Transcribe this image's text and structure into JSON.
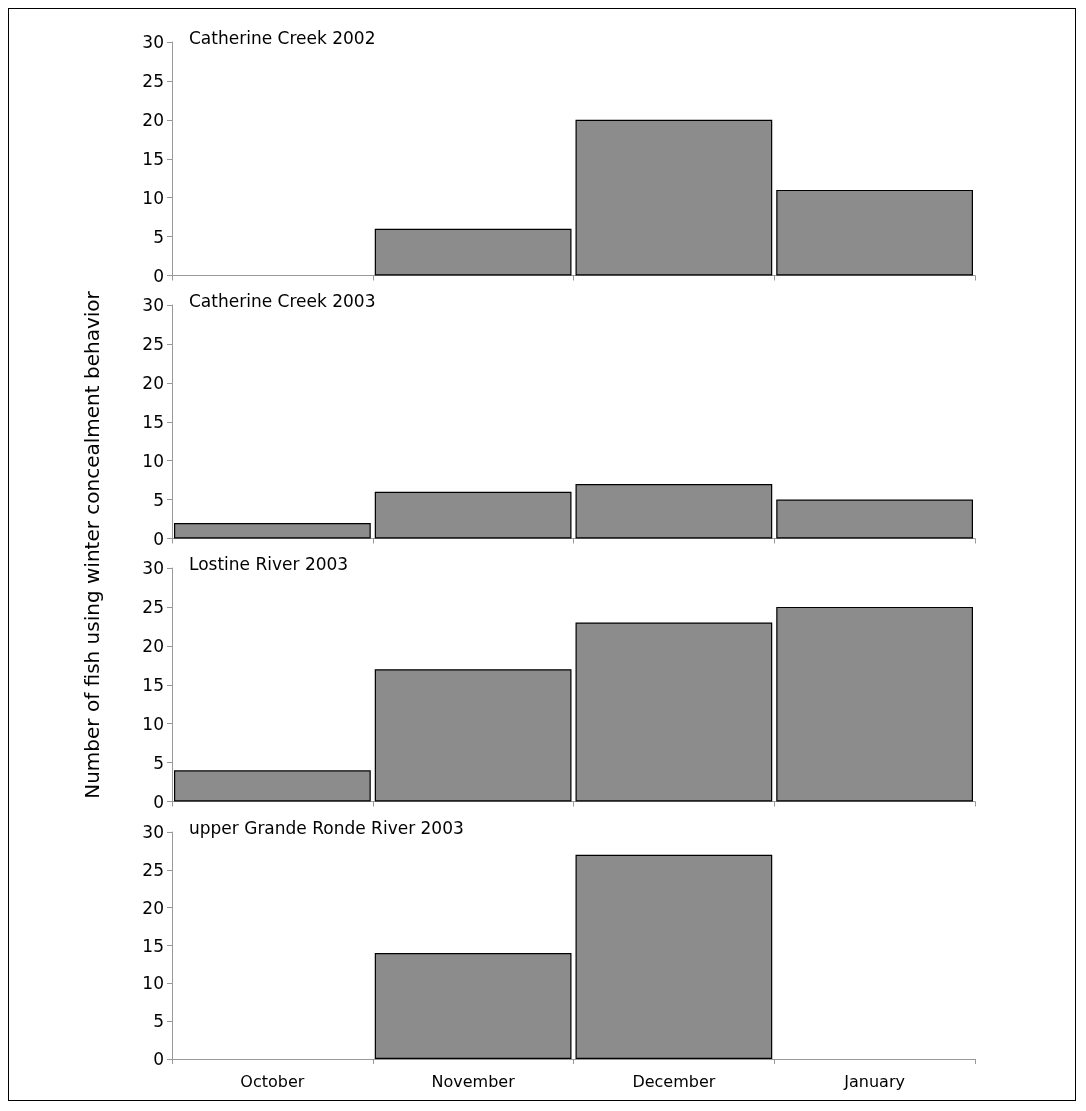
{
  "chart_data": [
    {
      "type": "bar",
      "title": "Catherine Creek 2002",
      "ylabel": "Number of fish using winter concealment behavior",
      "categories": [
        null,
        null,
        null,
        null
      ],
      "values": [
        0,
        6,
        20,
        11
      ],
      "color": "#8c8c8c",
      "ylim": [
        0,
        30
      ],
      "yticks": [
        0,
        5,
        10,
        15,
        20,
        25,
        30
      ],
      "grid": false,
      "tick_labels": "y"
    },
    {
      "type": "bar",
      "title": "Catherine Creek 2003",
      "categories": [
        null,
        null,
        null,
        null
      ],
      "values": [
        2,
        6,
        7,
        5
      ],
      "color": "#8c8c8c",
      "ylim": [
        0,
        30
      ],
      "yticks": [
        0,
        5,
        10,
        15,
        20,
        25,
        30
      ],
      "grid": false,
      "tick_labels": "y"
    },
    {
      "type": "bar",
      "title": "Lostine River 2003",
      "categories": [
        null,
        null,
        null,
        null
      ],
      "values": [
        4,
        17,
        23,
        25
      ],
      "color": "#8c8c8c",
      "ylim": [
        0,
        30
      ],
      "yticks": [
        0,
        5,
        10,
        15,
        20,
        25,
        30
      ],
      "grid": false,
      "tick_labels": "y"
    },
    {
      "type": "bar",
      "title": "upper Grande Ronde River 2003",
      "categories": [
        "October",
        "November",
        "December",
        "January"
      ],
      "values": [
        0,
        14,
        27,
        0
      ],
      "color": "#8c8c8c",
      "ylim": [
        0,
        30
      ],
      "yticks": [
        0,
        5,
        10,
        15,
        20,
        25,
        30
      ],
      "grid": false
    }
  ]
}
